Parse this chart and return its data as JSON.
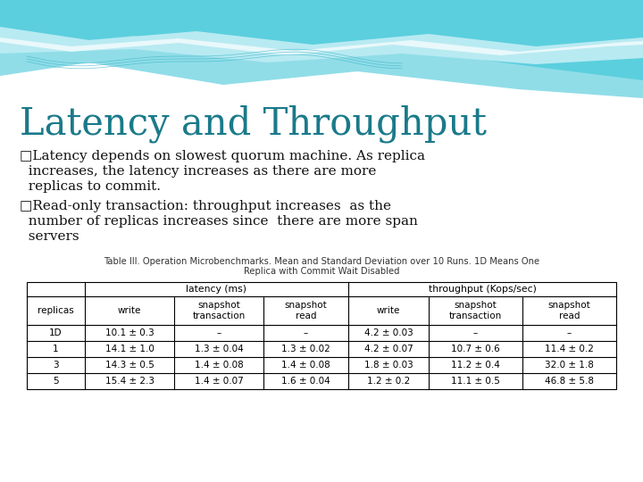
{
  "title": "Latency and Throughput",
  "title_color": "#1a7a8a",
  "title_fontsize": 30,
  "bullets": [
    [
      "□Latency depends on slowest quorum machine. As replica",
      "  increases, the latency increases as there are more",
      "  replicas to commit."
    ],
    [
      "□Read-only transaction: throughput increases  as the",
      "  number of replicas increases since  there are more span",
      "  servers"
    ]
  ],
  "table_caption_line1": "Table III. Operation Microbenchmarks. Mean and Standard Deviation over 10 Runs. 1D Means One",
  "table_caption_line2": "Replica with Commit Wait Disabled",
  "rows": [
    [
      "1D",
      "10.1 ± 0.3",
      "–",
      "–",
      "4.2 ± 0.03",
      "–",
      "–"
    ],
    [
      "1",
      "14.1 ± 1.0",
      "1.3 ± 0.04",
      "1.3 ± 0.02",
      "4.2 ± 0.07",
      "10.7 ± 0.6",
      "11.4 ± 0.2"
    ],
    [
      "3",
      "14.3 ± 0.5",
      "1.4 ± 0.08",
      "1.4 ± 0.08",
      "1.8 ± 0.03",
      "11.2 ± 0.4",
      "32.0 ± 1.8"
    ],
    [
      "5",
      "15.4 ± 2.3",
      "1.4 ± 0.07",
      "1.6 ± 0.04",
      "1.2 ± 0.2",
      "11.1 ± 0.5",
      "46.8 ± 5.8"
    ]
  ],
  "slide_bg": "#ffffff",
  "text_color": "#111111",
  "font_size_body": 11.0,
  "font_size_table": 7.8,
  "wave_color1": "#5bcfde",
  "wave_color2": "#90dde8",
  "wave_color3": "#b8eaf2",
  "wave_white": "#e8f8fc"
}
